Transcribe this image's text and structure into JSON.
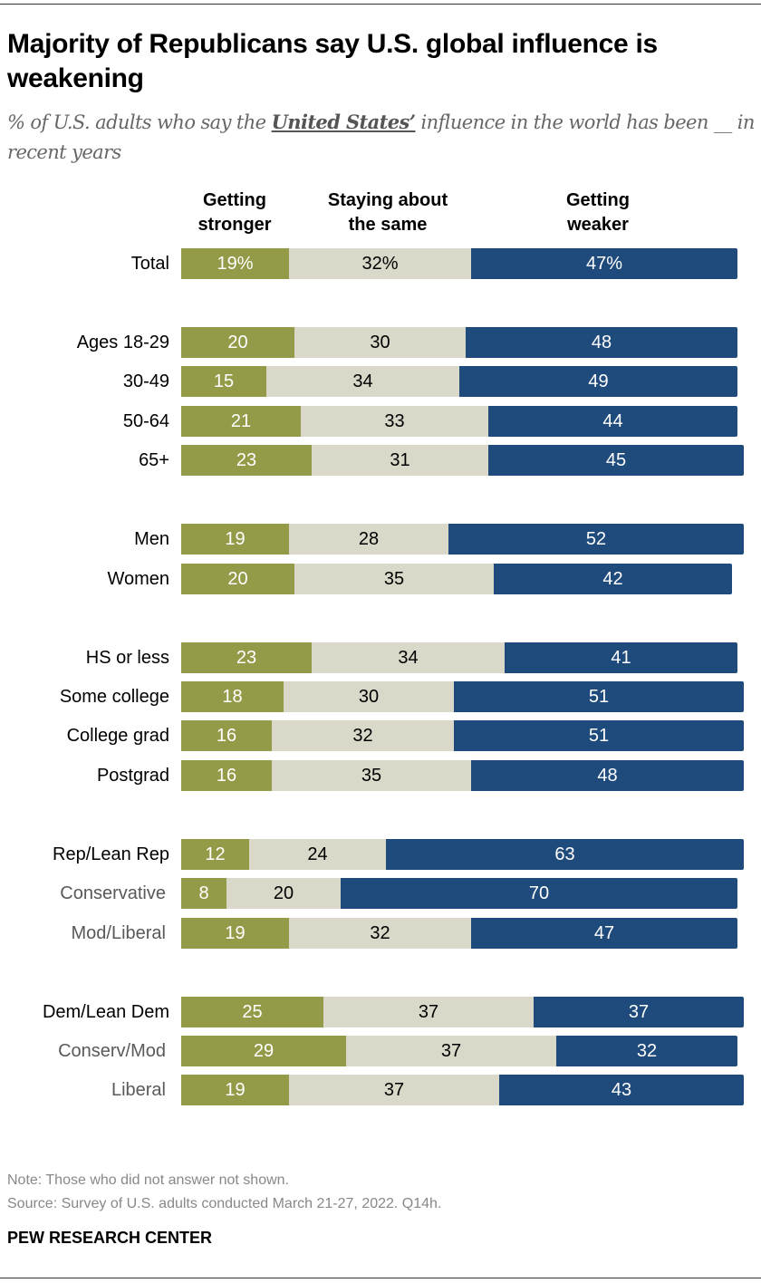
{
  "title": "Majority of Republicans say U.S. global influence is weakening",
  "subtitle": {
    "pre": "% of U.S. adults who say the ",
    "emphasis": "United States’",
    "post": " influence in the world has been __ in recent years"
  },
  "note": "Note: Those who did not answer not shown.",
  "source": "Source: Survey of U.S. adults conducted March 21-27, 2022. Q14h.",
  "brand": "PEW RESEARCH CENTER",
  "chart_data": {
    "type": "bar",
    "orientation": "horizontal",
    "stacked": true,
    "colors": [
      "#949b48",
      "#dad8c8",
      "#1f4a7c"
    ],
    "series": [
      {
        "name": "Getting stronger",
        "name_lines": [
          "Getting",
          "stronger"
        ]
      },
      {
        "name": "Staying about the same",
        "name_lines": [
          "Staying about",
          "the same"
        ]
      },
      {
        "name": "Getting weaker",
        "name_lines": [
          "Getting",
          "weaker"
        ]
      }
    ],
    "groups": [
      [
        {
          "label": "Total",
          "values": [
            19,
            32,
            47
          ],
          "percent_suffix": true
        }
      ],
      [
        {
          "label": "Ages 18-29",
          "values": [
            20,
            30,
            48
          ]
        },
        {
          "label": "30-49",
          "values": [
            15,
            34,
            49
          ]
        },
        {
          "label": "50-64",
          "values": [
            21,
            33,
            44
          ]
        },
        {
          "label": "65+",
          "values": [
            23,
            31,
            45
          ]
        }
      ],
      [
        {
          "label": "Men",
          "values": [
            19,
            28,
            52
          ]
        },
        {
          "label": "Women",
          "values": [
            20,
            35,
            42
          ]
        }
      ],
      [
        {
          "label": "HS or less",
          "values": [
            23,
            34,
            41
          ]
        },
        {
          "label": "Some college",
          "values": [
            18,
            30,
            51
          ]
        },
        {
          "label": "College grad",
          "values": [
            16,
            32,
            51
          ]
        },
        {
          "label": "Postgrad",
          "values": [
            16,
            35,
            48
          ]
        }
      ],
      [
        {
          "label": "Rep/Lean Rep",
          "values": [
            12,
            24,
            63
          ]
        },
        {
          "label": "Conservative",
          "values": [
            8,
            20,
            70
          ],
          "sub": true
        },
        {
          "label": "Mod/Liberal",
          "values": [
            19,
            32,
            47
          ],
          "sub": true
        }
      ],
      [
        {
          "label": "Dem/Lean Dem",
          "values": [
            25,
            37,
            37
          ]
        },
        {
          "label": "Conserv/Mod",
          "values": [
            29,
            37,
            32
          ],
          "sub": true
        },
        {
          "label": "Liberal",
          "values": [
            19,
            37,
            43
          ],
          "sub": true
        }
      ]
    ]
  }
}
